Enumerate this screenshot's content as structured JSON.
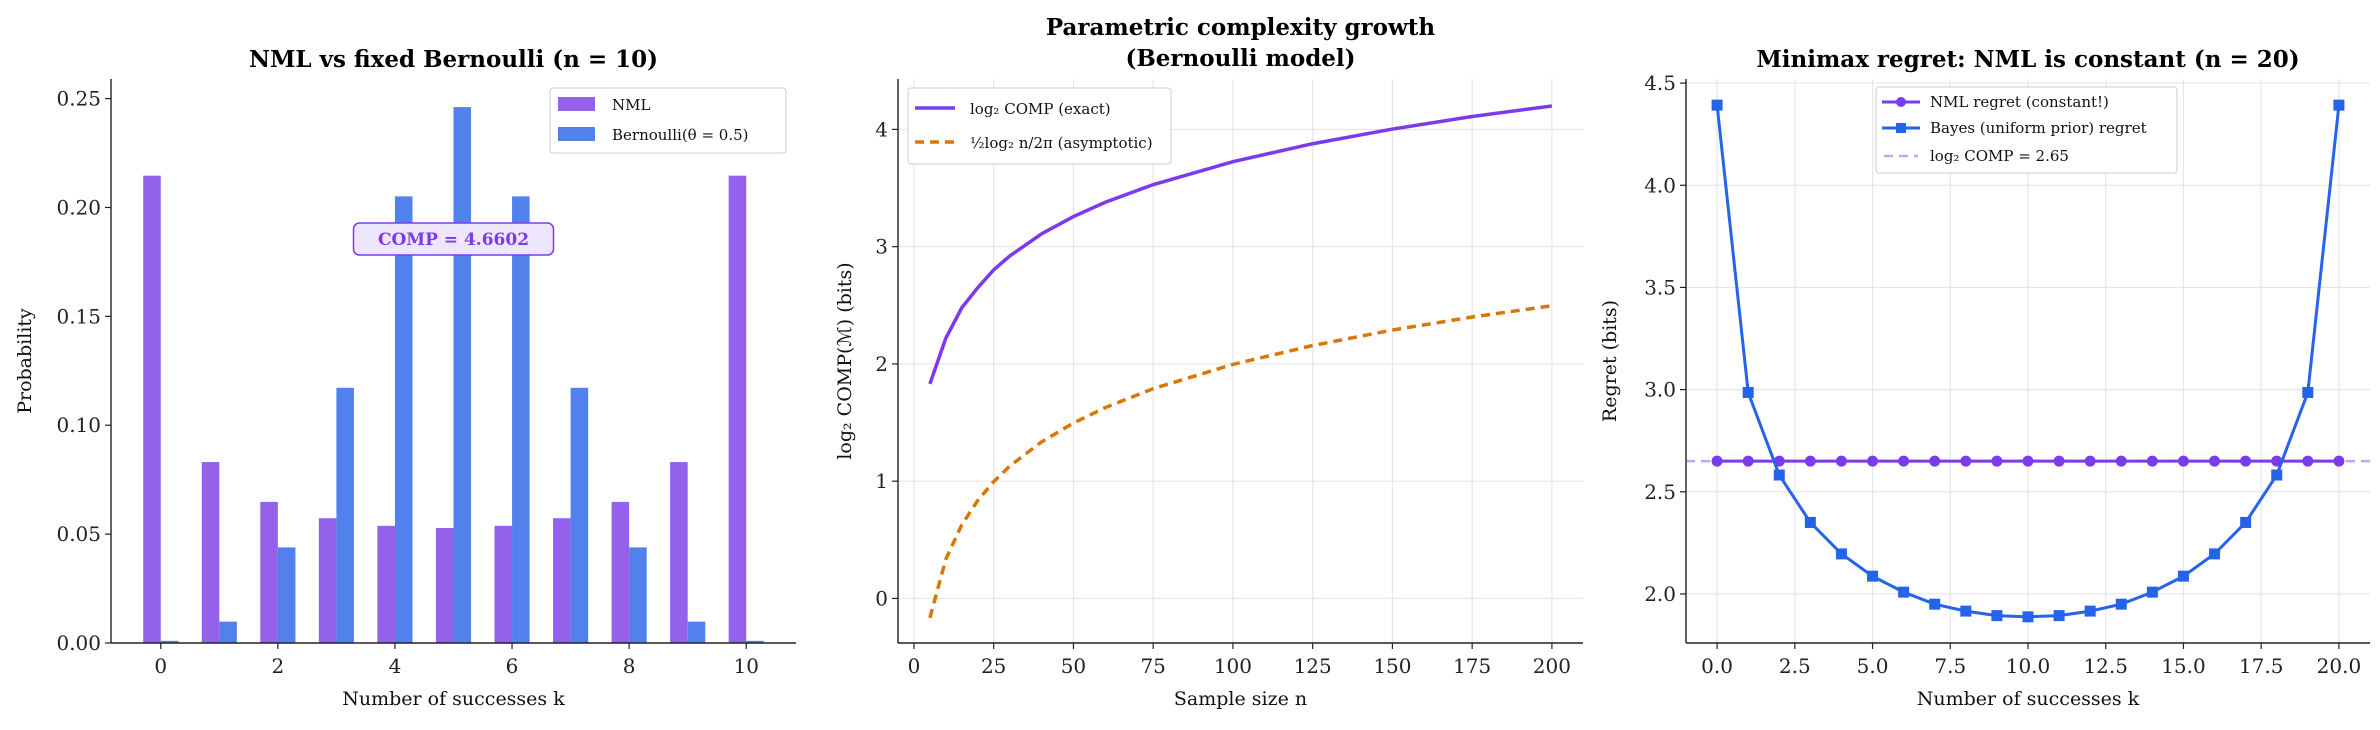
{
  "colors": {
    "nml_bar": "#9461ed",
    "bern_bar": "#5281ee",
    "nml_line": "#7c3aed",
    "bayes_line": "#2563eb",
    "asym": "#d97706",
    "comp_ref": "#c4a5f7",
    "annot_bg": "#ede6fd",
    "grid": "#e6e6e6"
  },
  "chart_data": [
    {
      "type": "bar",
      "title": "NML vs fixed Bernoulli (n = 10)",
      "xlabel": "Number of successes k",
      "ylabel": "Probability",
      "categories": [
        0,
        1,
        2,
        3,
        4,
        5,
        6,
        7,
        8,
        9,
        10
      ],
      "xticks": [
        0,
        2,
        4,
        6,
        8,
        10
      ],
      "yticks": [
        "0.00",
        "0.05",
        "0.10",
        "0.15",
        "0.20",
        "0.25"
      ],
      "xlim": [
        -0.85,
        10.85
      ],
      "ylim": [
        0,
        0.259
      ],
      "grid": false,
      "legend": "top-right",
      "series": [
        {
          "name": "NML",
          "values": [
            0.2146,
            0.0831,
            0.0648,
            0.0573,
            0.0538,
            0.0528,
            0.0538,
            0.0573,
            0.0648,
            0.0831,
            0.2146
          ]
        },
        {
          "name": "Bernoulli(θ = 0.5)",
          "values": [
            0.001,
            0.0098,
            0.0439,
            0.1172,
            0.2051,
            0.2461,
            0.2051,
            0.1172,
            0.0439,
            0.0098,
            0.001
          ]
        }
      ],
      "annotation": {
        "text": "COMP = 4.6602",
        "x": 5,
        "y": 0.1855
      }
    },
    {
      "type": "line",
      "title": "Parametric complexity growth",
      "title_line2": "(Bernoulli model)",
      "xlabel": "Sample size n",
      "ylabel": "log₂ COMP(ℳ) (bits)",
      "xticks": [
        0,
        25,
        50,
        75,
        100,
        125,
        150,
        175,
        200
      ],
      "yticks": [
        0,
        1,
        2,
        3,
        4
      ],
      "xlim": [
        -5,
        209.75
      ],
      "ylim": [
        -0.38,
        4.43
      ],
      "grid": true,
      "legend": "top-left",
      "x": [
        5,
        10,
        15,
        20,
        25,
        30,
        40,
        50,
        60,
        75,
        100,
        125,
        150,
        175,
        200
      ],
      "series": [
        {
          "name": "log₂ COMP (exact)",
          "style": "solid",
          "values": [
            1.83,
            2.22,
            2.479,
            2.65,
            2.802,
            2.92,
            3.109,
            3.257,
            3.379,
            3.529,
            3.725,
            3.878,
            4.003,
            4.11,
            4.2
          ]
        },
        {
          "name": "½log₂ n/2π (asymptotic)",
          "style": "dashed",
          "values": [
            -0.165,
            0.335,
            0.628,
            0.835,
            0.996,
            1.128,
            1.335,
            1.496,
            1.628,
            1.789,
            1.996,
            2.157,
            2.289,
            2.4,
            2.496
          ]
        }
      ]
    },
    {
      "type": "line",
      "title": "Minimax regret: NML is constant (n = 20)",
      "xlabel": "Number of successes k",
      "ylabel": "Regret (bits)",
      "xticks": [
        "0.0",
        "2.5",
        "5.0",
        "7.5",
        "10.0",
        "12.5",
        "15.0",
        "17.5",
        "20.0"
      ],
      "yticks": [
        "2.0",
        "2.5",
        "3.0",
        "3.5",
        "4.0",
        "4.5"
      ],
      "xlim": [
        -1,
        21
      ],
      "ylim": [
        1.76,
        4.52
      ],
      "grid": true,
      "legend": "top-center",
      "x": [
        0,
        1,
        2,
        3,
        4,
        5,
        6,
        7,
        8,
        9,
        10,
        11,
        12,
        13,
        14,
        15,
        16,
        17,
        18,
        19,
        20
      ],
      "series": [
        {
          "name": "NML regret (constant!)",
          "marker": "circle",
          "values": [
            2.65,
            2.65,
            2.65,
            2.65,
            2.65,
            2.65,
            2.65,
            2.65,
            2.65,
            2.65,
            2.65,
            2.65,
            2.65,
            2.65,
            2.65,
            2.65,
            2.65,
            2.65,
            2.65,
            2.65,
            2.65
          ]
        },
        {
          "name": "Bayes (uniform prior) regret",
          "marker": "square",
          "values": [
            4.392,
            2.986,
            2.582,
            2.35,
            2.196,
            2.087,
            2.009,
            1.95,
            1.916,
            1.894,
            1.888,
            1.894,
            1.916,
            1.95,
            2.009,
            2.087,
            2.196,
            2.35,
            2.582,
            2.986,
            4.392
          ]
        }
      ],
      "hline": {
        "name": "log₂ COMP = 2.65",
        "y": 2.65
      }
    }
  ]
}
